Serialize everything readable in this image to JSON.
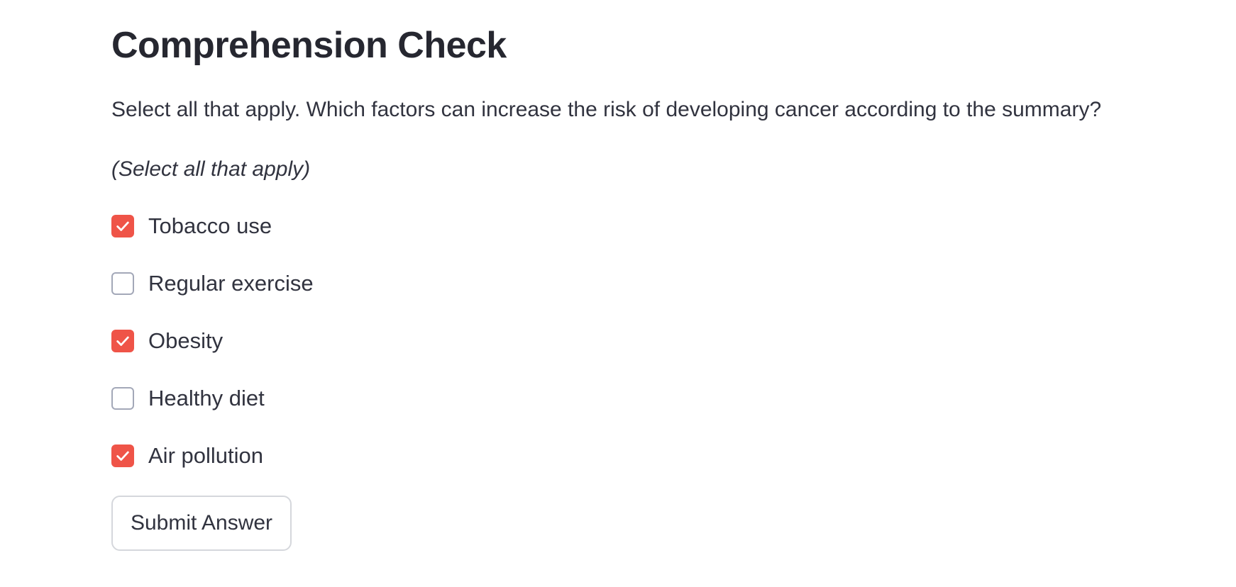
{
  "page": {
    "title": "Comprehension Check",
    "question": "Select all that apply. Which factors can increase the risk of developing cancer according to the summary?",
    "instruction": "(Select all that apply)"
  },
  "options": [
    {
      "label": "Tobacco use",
      "checked": true
    },
    {
      "label": "Regular exercise",
      "checked": false
    },
    {
      "label": "Obesity",
      "checked": true
    },
    {
      "label": "Healthy diet",
      "checked": false
    },
    {
      "label": "Air pollution",
      "checked": true
    }
  ],
  "submit": {
    "label": "Submit Answer"
  },
  "colors": {
    "accent": "#ef5448",
    "text": "#31333f",
    "checkbox_border": "#a3a8b8",
    "button_border": "#d5d7dc"
  },
  "icons": {
    "checkmark": "checkmark-icon"
  }
}
